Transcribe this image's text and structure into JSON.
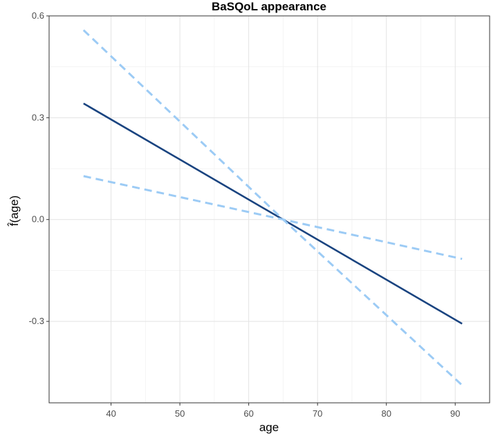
{
  "chart_data": {
    "type": "line",
    "title": "BaSQoL appearance",
    "xlabel": "age",
    "ylabel": "f̂(age)",
    "xlim": [
      31,
      95
    ],
    "ylim": [
      -0.54,
      0.6
    ],
    "x_ticks": [
      40,
      50,
      60,
      70,
      80,
      90
    ],
    "y_ticks": [
      -0.3,
      0.0,
      0.3,
      0.6
    ],
    "y_tick_labels": [
      "-0.3",
      "0.0",
      "0.3",
      "0.6"
    ],
    "grid": true,
    "series": [
      {
        "role": "estimate",
        "style": "solid",
        "color": "#1a4480",
        "x": [
          36,
          91
        ],
        "y": [
          0.342,
          -0.307
        ]
      },
      {
        "role": "upper-band-start",
        "style": "dashed",
        "color": "#9ccbf5",
        "x": [
          36,
          65,
          91
        ],
        "y": [
          0.558,
          0.0,
          -0.488
        ]
      },
      {
        "role": "lower-band-start",
        "style": "dashed",
        "color": "#9ccbf5",
        "x": [
          36,
          65,
          91
        ],
        "y": [
          0.128,
          0.0,
          -0.116
        ]
      }
    ]
  }
}
